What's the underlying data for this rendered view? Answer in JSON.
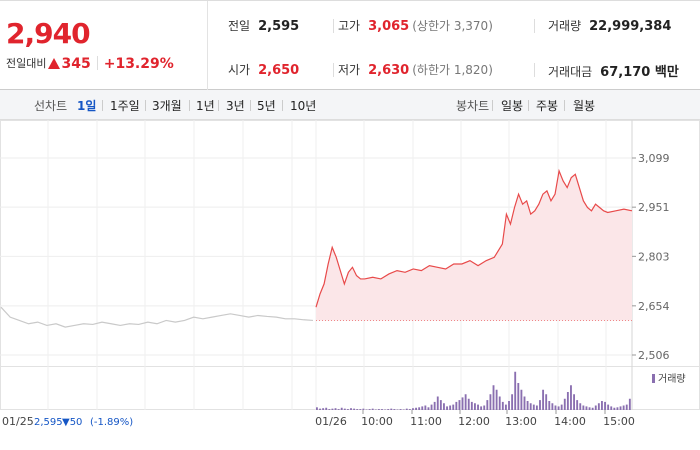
{
  "summary": {
    "current_price": "2,940",
    "diff_label": "전일대비",
    "diff_value": "345",
    "diff_rate": "+13.29%",
    "prev_close": {
      "label": "전일",
      "value": "2,595"
    },
    "open": {
      "label": "시가",
      "value": "2,650"
    },
    "high": {
      "label": "고가",
      "value": "3,065",
      "sub": "(상한가 3,370)"
    },
    "low": {
      "label": "저가",
      "value": "2,630",
      "sub": "(하한가 1,820)"
    },
    "volume": {
      "label": "거래량",
      "value": "22,999,384"
    },
    "trade_amount": {
      "label": "거래대금",
      "value": "67,170 백만"
    }
  },
  "tabs": {
    "period_label": "선차트",
    "period_items": [
      "1일",
      "1주일",
      "3개월",
      "1년",
      "3년",
      "5년",
      "10년"
    ],
    "active_period": "1일",
    "candle_label": "봉차트",
    "candle_items": [
      "일봉",
      "주봉",
      "월봉"
    ]
  },
  "chart_data": {
    "type": "line",
    "price_axis": {
      "ticks": [
        "3,099",
        "2,951",
        "2,803",
        "2,654",
        "2,506"
      ],
      "ylim": [
        2506,
        3099
      ]
    },
    "time_labels": [
      "01/26",
      "10:00",
      "11:00",
      "12:00",
      "13:00",
      "14:00",
      "15:00"
    ],
    "prev_day": {
      "date": "01/25",
      "close": "2,595",
      "change": "▼50",
      "change_rate": "(-1.89%)"
    },
    "volume_legend": "거래량",
    "colors": {
      "today_line": "#e84a4a",
      "today_fill": "#fbe6e8",
      "prev_line": "#c9c9c9",
      "volume_bar": "#8a6fb0",
      "prev_text": "#1556c5"
    },
    "series": [
      {
        "name": "today",
        "x": [
          "09:00",
          "09:05",
          "09:10",
          "09:15",
          "09:20",
          "09:25",
          "09:30",
          "09:35",
          "09:40",
          "09:45",
          "09:50",
          "09:55",
          "10:00",
          "10:10",
          "10:20",
          "10:30",
          "10:40",
          "10:50",
          "11:00",
          "11:10",
          "11:20",
          "11:30",
          "11:40",
          "11:50",
          "12:00",
          "12:10",
          "12:20",
          "12:30",
          "12:40",
          "12:45",
          "12:50",
          "12:55",
          "13:00",
          "13:05",
          "13:10",
          "13:15",
          "13:20",
          "13:25",
          "13:30",
          "13:35",
          "13:40",
          "13:45",
          "13:50",
          "13:55",
          "14:00",
          "14:05",
          "14:10",
          "14:15",
          "14:20",
          "14:25",
          "14:30",
          "14:35",
          "14:40",
          "14:45",
          "14:50",
          "14:55",
          "15:00",
          "15:10",
          "15:20",
          "15:30"
        ],
        "values": [
          2650,
          2690,
          2720,
          2780,
          2830,
          2800,
          2760,
          2720,
          2755,
          2770,
          2745,
          2735,
          2735,
          2740,
          2735,
          2750,
          2760,
          2755,
          2765,
          2760,
          2775,
          2770,
          2765,
          2780,
          2780,
          2790,
          2775,
          2790,
          2800,
          2820,
          2840,
          2930,
          2900,
          2950,
          2990,
          2960,
          2970,
          2930,
          2940,
          2960,
          2990,
          3000,
          2970,
          2990,
          3060,
          3030,
          3010,
          3040,
          3050,
          3010,
          2970,
          2950,
          2940,
          2960,
          2950,
          2940,
          2935,
          2940,
          2945,
          2940
        ]
      },
      {
        "name": "prev_day",
        "values": [
          2650,
          2620,
          2610,
          2600,
          2605,
          2595,
          2600,
          2590,
          2595,
          2600,
          2598,
          2605,
          2600,
          2595,
          2600,
          2598,
          2605,
          2600,
          2610,
          2605,
          2610,
          2620,
          2615,
          2620,
          2625,
          2630,
          2625,
          2620,
          2625,
          2622,
          2620,
          2615,
          2615,
          2612,
          2610
        ]
      }
    ],
    "volume": [
      0.06,
      0.03,
      0.04,
      0.05,
      0.02,
      0.03,
      0.04,
      0.02,
      0.05,
      0.03,
      0.02,
      0.04,
      0.03,
      0.02,
      0.02,
      0.03,
      0.01,
      0.02,
      0.03,
      0.01,
      0.02,
      0.02,
      0.01,
      0.02,
      0.03,
      0.02,
      0.01,
      0.02,
      0.01,
      0.03,
      0.02,
      0.04,
      0.05,
      0.06,
      0.08,
      0.1,
      0.06,
      0.12,
      0.18,
      0.3,
      0.22,
      0.15,
      0.08,
      0.1,
      0.12,
      0.18,
      0.22,
      0.28,
      0.35,
      0.25,
      0.18,
      0.15,
      0.12,
      0.08,
      0.1,
      0.22,
      0.35,
      0.55,
      0.45,
      0.3,
      0.18,
      0.12,
      0.2,
      0.35,
      0.85,
      0.6,
      0.45,
      0.3,
      0.2,
      0.15,
      0.12,
      0.1,
      0.22,
      0.45,
      0.35,
      0.2,
      0.15,
      0.1,
      0.08,
      0.12,
      0.25,
      0.4,
      0.55,
      0.35,
      0.22,
      0.15,
      0.1,
      0.08,
      0.06,
      0.05,
      0.1,
      0.15,
      0.2,
      0.18,
      0.12,
      0.08,
      0.05,
      0.06,
      0.08,
      0.1,
      0.12,
      0.25
    ]
  }
}
